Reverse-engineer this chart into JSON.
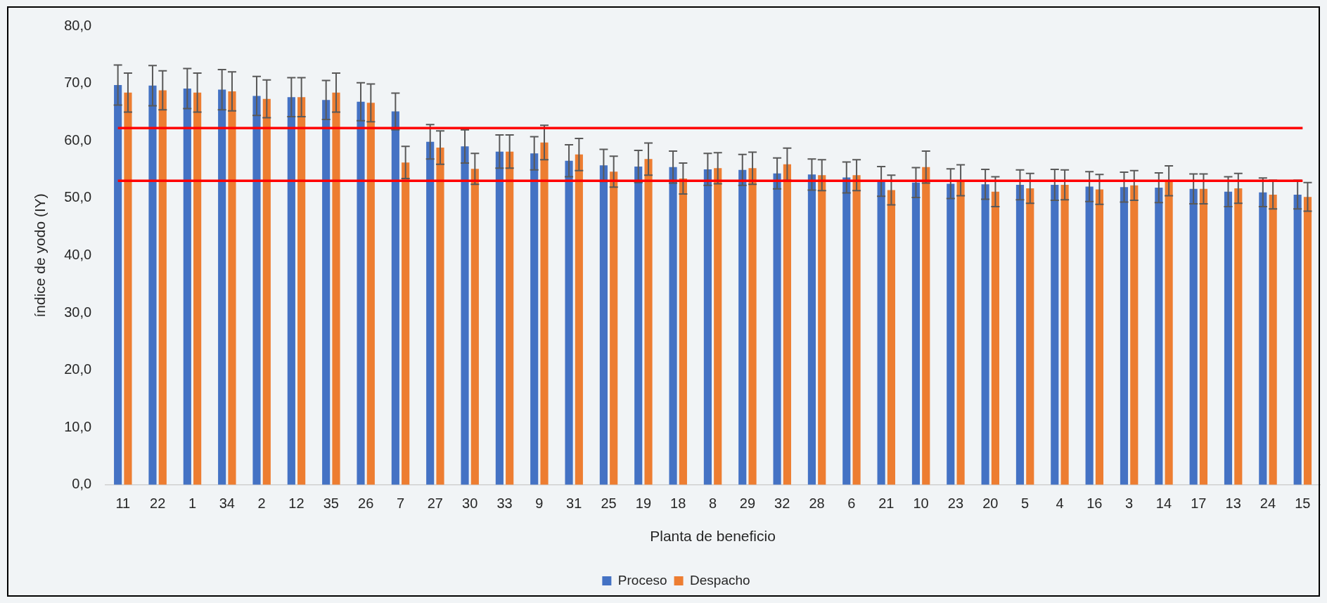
{
  "chart_data": {
    "type": "bar",
    "xlabel": "Planta de beneficio",
    "ylabel": "índice de yodo (IY)",
    "categories": [
      "11",
      "22",
      "1",
      "34",
      "2",
      "12",
      "35",
      "26",
      "7",
      "27",
      "30",
      "33",
      "9",
      "31",
      "25",
      "19",
      "18",
      "8",
      "29",
      "32",
      "28",
      "6",
      "21",
      "10",
      "23",
      "20",
      "5",
      "4",
      "16",
      "3",
      "14",
      "17",
      "13",
      "24",
      "15"
    ],
    "series": [
      {
        "name": "Proceso",
        "color": "#4472c4",
        "values": [
          69.7,
          69.6,
          69.1,
          68.9,
          67.8,
          67.6,
          67.1,
          66.8,
          65.1,
          59.8,
          59.0,
          58.1,
          57.8,
          56.5,
          55.7,
          55.5,
          55.4,
          55.0,
          54.9,
          54.3,
          54.1,
          53.6,
          52.9,
          52.7,
          52.5,
          52.4,
          52.3,
          52.3,
          52.0,
          51.9,
          51.8,
          51.6,
          51.1,
          51.0,
          50.6
        ],
        "errors": [
          3.5,
          3.5,
          3.5,
          3.5,
          3.4,
          3.4,
          3.4,
          3.3,
          3.2,
          3.0,
          2.9,
          2.9,
          2.9,
          2.8,
          2.8,
          2.8,
          2.8,
          2.8,
          2.7,
          2.7,
          2.7,
          2.7,
          2.6,
          2.6,
          2.6,
          2.6,
          2.6,
          2.7,
          2.6,
          2.6,
          2.6,
          2.6,
          2.6,
          2.5,
          2.5
        ]
      },
      {
        "name": "Despacho",
        "color": "#ed7d31",
        "values": [
          68.4,
          68.8,
          68.4,
          68.6,
          67.3,
          67.6,
          68.4,
          66.6,
          56.2,
          58.8,
          55.1,
          58.1,
          59.7,
          57.6,
          54.6,
          56.8,
          53.4,
          55.2,
          55.2,
          55.9,
          54.0,
          54.0,
          51.4,
          55.4,
          53.1,
          51.1,
          51.7,
          52.3,
          51.5,
          52.2,
          53.0,
          51.6,
          51.7,
          50.6,
          50.2
        ],
        "errors": [
          3.4,
          3.4,
          3.4,
          3.4,
          3.3,
          3.4,
          3.4,
          3.3,
          2.8,
          2.9,
          2.7,
          2.9,
          3.0,
          2.8,
          2.7,
          2.8,
          2.7,
          2.7,
          2.8,
          2.8,
          2.7,
          2.7,
          2.6,
          2.8,
          2.7,
          2.6,
          2.6,
          2.6,
          2.6,
          2.6,
          2.6,
          2.6,
          2.6,
          2.5,
          2.5
        ]
      }
    ],
    "ylim": [
      0,
      80
    ],
    "yticks": [
      {
        "value": 0,
        "label": "0,0"
      },
      {
        "value": 10,
        "label": "10,0"
      },
      {
        "value": 20,
        "label": "20,0"
      },
      {
        "value": 30,
        "label": "30,0"
      },
      {
        "value": 40,
        "label": "40,0"
      },
      {
        "value": 50,
        "label": "50,0"
      },
      {
        "value": 60,
        "label": "60,0"
      },
      {
        "value": 70,
        "label": "70,0"
      },
      {
        "value": 80,
        "label": "80,0"
      }
    ],
    "ref_lines": [
      {
        "axis": "y",
        "value": 62.2,
        "color": "#ff0000"
      },
      {
        "axis": "y",
        "value": 53.0,
        "color": "#ff0000"
      }
    ],
    "grid": false,
    "legend": "bottom"
  }
}
